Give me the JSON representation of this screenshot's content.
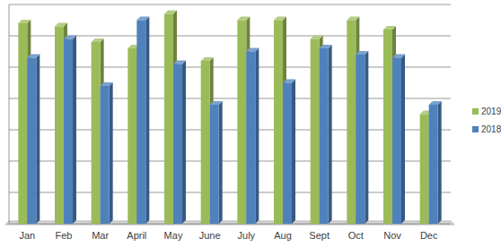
{
  "chart_data": {
    "type": "bar",
    "categories": [
      "Jan",
      "Feb",
      "Mar",
      "April",
      "May",
      "June",
      "July",
      "Aug",
      "Sept",
      "Oct",
      "Nov",
      "Dec"
    ],
    "series": [
      {
        "name": "2019",
        "color": "#9bbb59",
        "values": [
          6.4,
          6.3,
          5.8,
          5.6,
          6.7,
          5.2,
          6.5,
          6.5,
          5.9,
          6.5,
          6.2,
          3.5
        ]
      },
      {
        "name": "2018",
        "color": "#4f81bd",
        "values": [
          5.3,
          5.9,
          4.4,
          6.5,
          5.1,
          3.8,
          5.5,
          4.5,
          5.6,
          5.4,
          5.3,
          3.8
        ]
      }
    ],
    "ylim": [
      0,
      7
    ],
    "yticks": [
      0,
      1,
      2,
      3,
      4,
      5,
      6,
      7
    ],
    "grid": true,
    "legend": "right",
    "tick_labels": "x"
  }
}
